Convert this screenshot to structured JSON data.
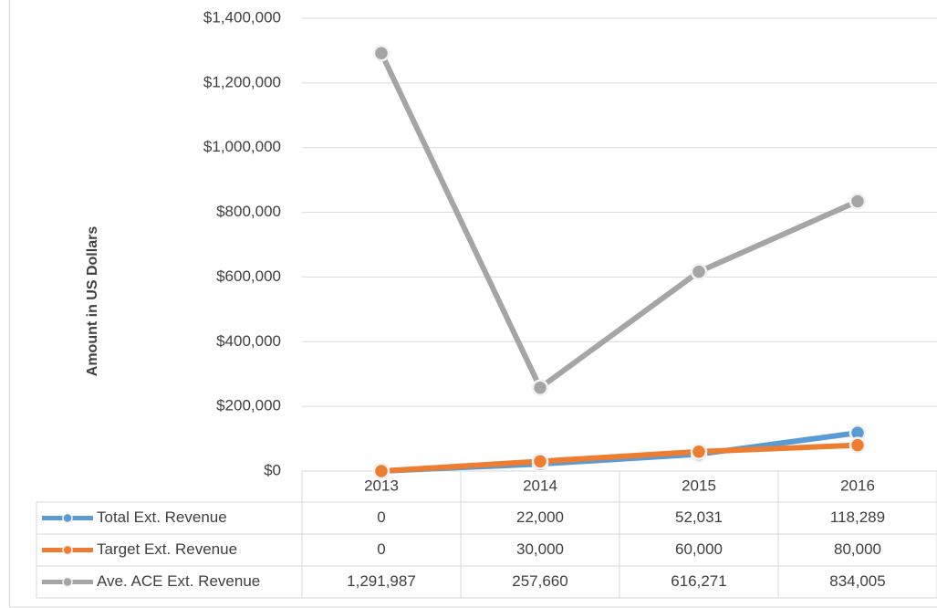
{
  "chart_data": {
    "type": "line",
    "y_label": "Amount in US Dollars",
    "categories": [
      "2013",
      "2014",
      "2015",
      "2016"
    ],
    "series": [
      {
        "name": "Total Ext. Revenue",
        "color": "#5b9bd5",
        "values": [
          0,
          22000,
          52031,
          118289
        ],
        "value_labels": [
          "0",
          "22,000",
          "52,031",
          "118,289"
        ]
      },
      {
        "name": "Target Ext. Revenue",
        "color": "#ed7d31",
        "values": [
          0,
          30000,
          60000,
          80000
        ],
        "value_labels": [
          "0",
          "30,000",
          "60,000",
          "80,000"
        ]
      },
      {
        "name": "Ave. ACE Ext. Revenue",
        "color": "#a5a5a5",
        "values": [
          1291987,
          257660,
          616271,
          834005
        ],
        "value_labels": [
          "1,291,987",
          "257,660",
          "616,271",
          "834,005"
        ]
      }
    ],
    "ylim": [
      0,
      1400000
    ],
    "yticks": [
      {
        "value": 0,
        "label": "$0"
      },
      {
        "value": 200000,
        "label": "$200,000"
      },
      {
        "value": 400000,
        "label": "$400,000"
      },
      {
        "value": 600000,
        "label": "$600,000"
      },
      {
        "value": 800000,
        "label": "$800,000"
      },
      {
        "value": 1000000,
        "label": "$1,000,000"
      },
      {
        "value": 1200000,
        "label": "$1,200,000"
      },
      {
        "value": 1400000,
        "label": "$1,400,000"
      }
    ],
    "grid": true,
    "data_table": true
  }
}
